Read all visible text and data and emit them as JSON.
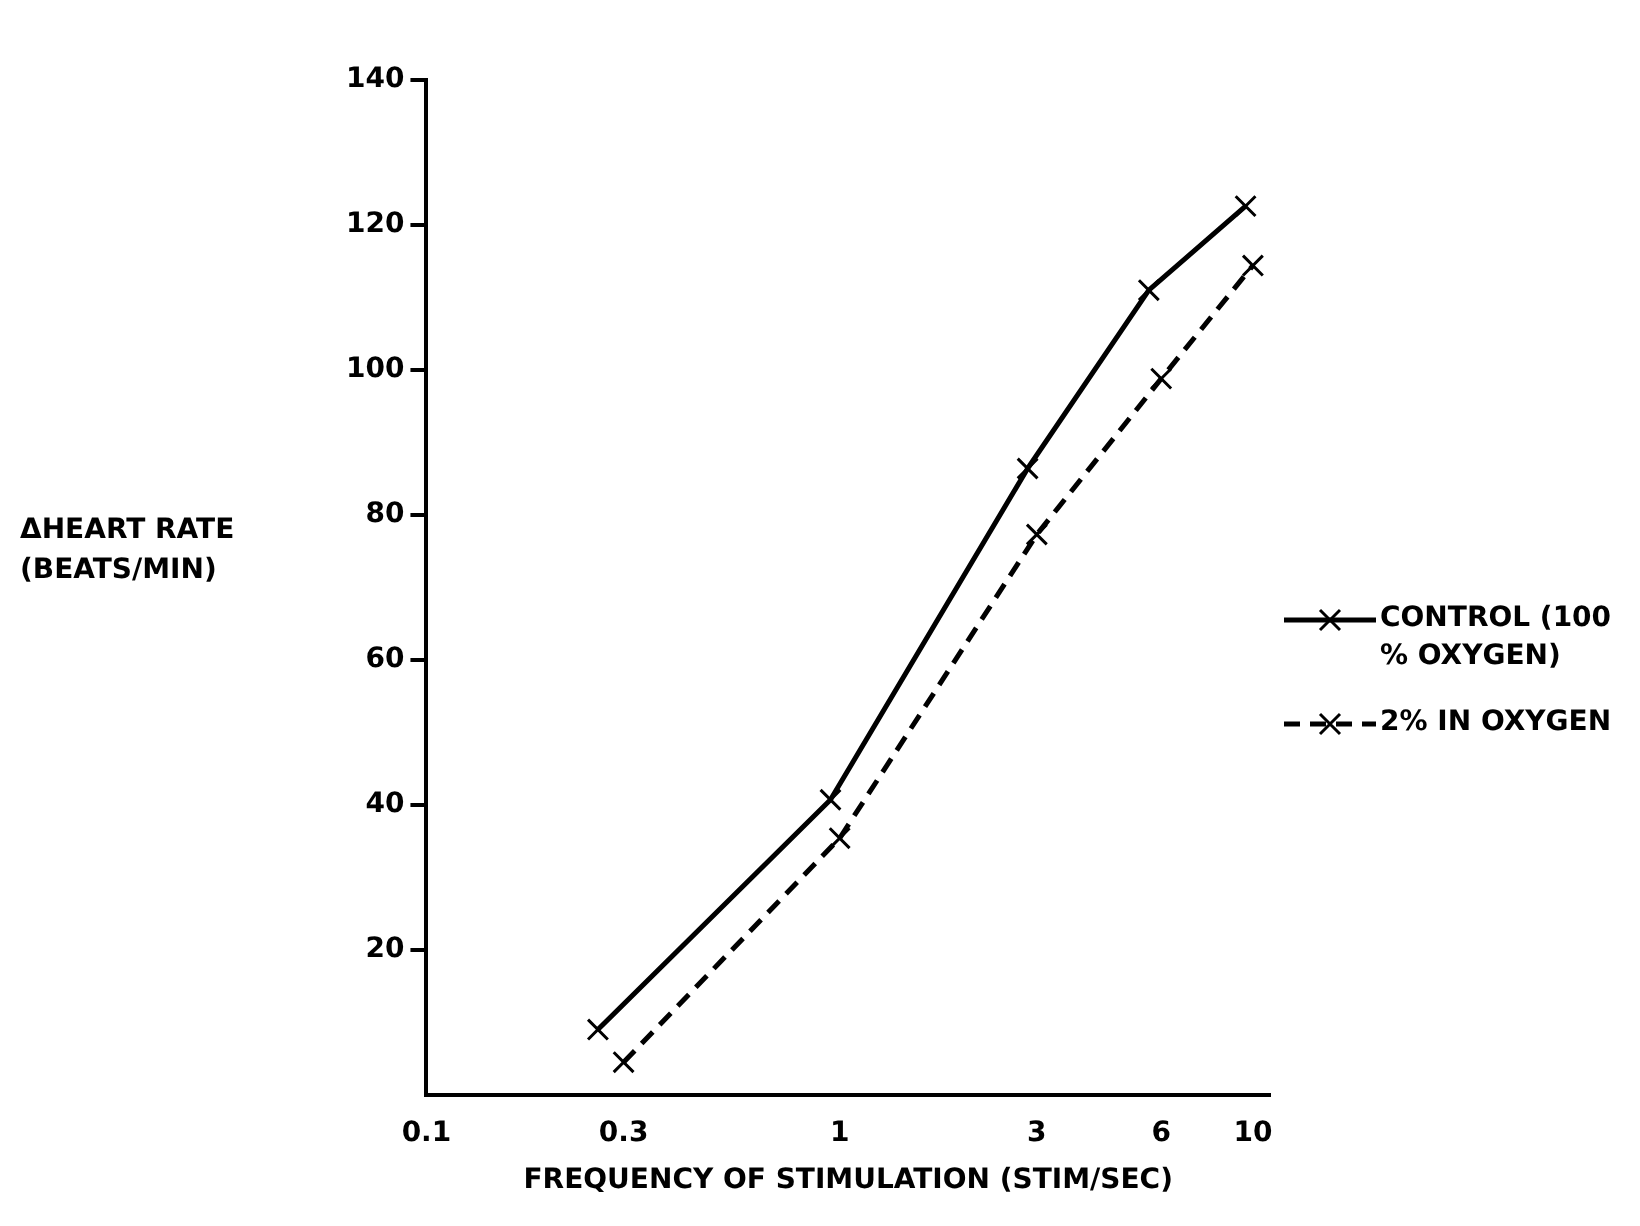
{
  "chart_data": {
    "type": "line",
    "xlabel": "FREQUENCY OF STIMULATION (STIM/SEC)",
    "ylabel": "ΔHEART RATE (BEATS/MIN)",
    "log": "x",
    "xlim": [
      0.1,
      11
    ],
    "xticks": [
      0.1,
      0.3,
      1,
      3,
      6,
      10
    ],
    "ylim": [
      0,
      140
    ],
    "yticks": [
      20,
      40,
      60,
      80,
      100,
      120,
      140
    ],
    "grid": false,
    "legend": "right",
    "series": [
      {
        "name": "CONTROL (100 % OXYGEN)",
        "color": "#000000",
        "marker": "cross",
        "line_style": "solid",
        "x": [
          0.26,
          0.95,
          2.85,
          5.6,
          9.6
        ],
        "values": [
          9,
          40.7,
          86.4,
          111,
          122.6
        ]
      },
      {
        "name": "2% IN OXYGEN",
        "color": "#000000",
        "marker": "cross",
        "line_style": "dashed",
        "x": [
          0.3,
          1,
          3,
          6,
          10
        ],
        "values": [
          4.5,
          35.4,
          77.3,
          98.8,
          114.4
        ]
      }
    ]
  }
}
